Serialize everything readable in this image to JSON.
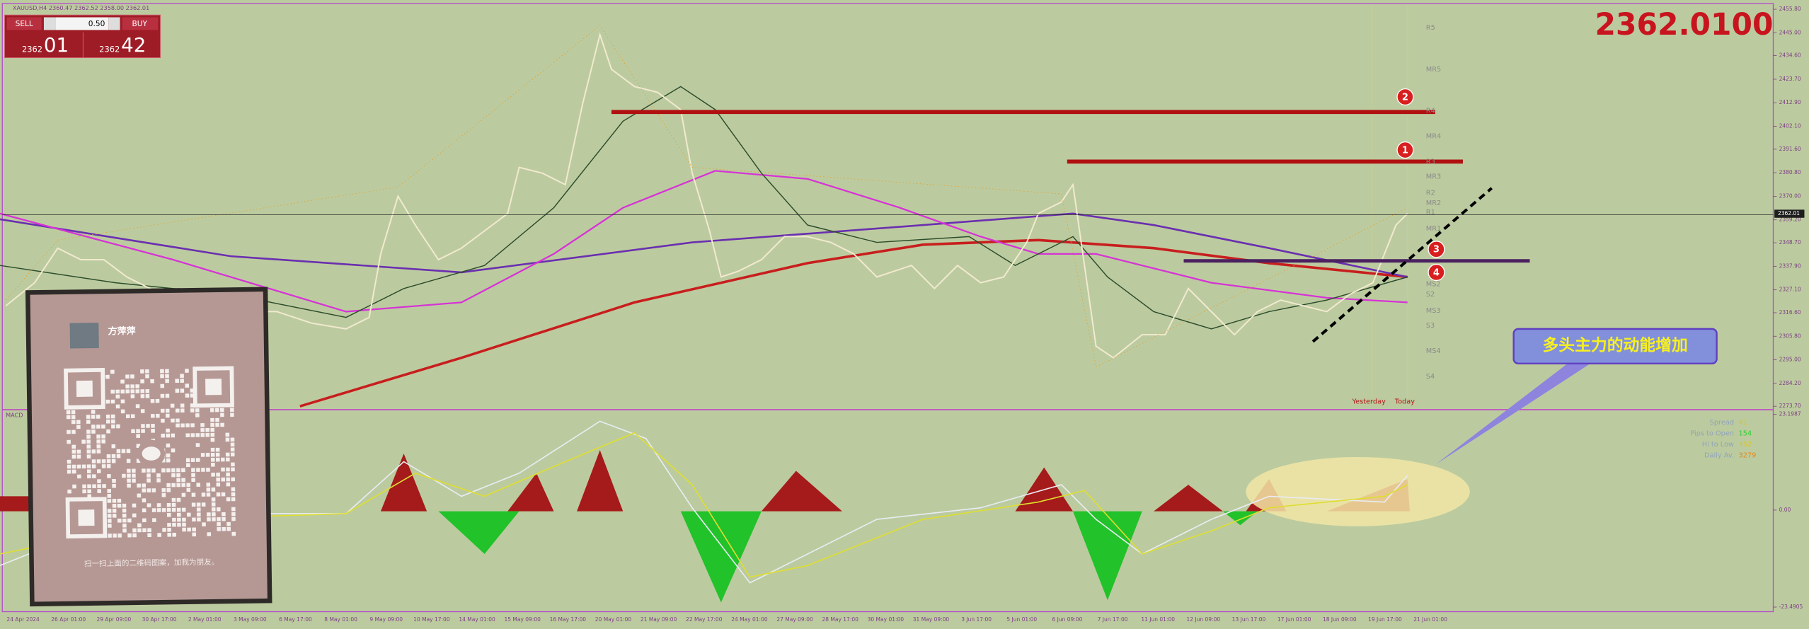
{
  "header": {
    "symbol_line": "XAUUSD,H4  2360.47 2362.52 2358.00 2362.01",
    "big_price": "2362.0100",
    "macd_label": "MACD"
  },
  "trade_panel": {
    "sell": "SELL",
    "buy": "BUY",
    "lot": "0.50",
    "bid_prefix": "2362",
    "bid_pips": "01",
    "ask_prefix": "2362",
    "ask_pips": "42"
  },
  "price_axis": {
    "ticks": [
      {
        "value": 2455.8,
        "label": "2455.80"
      },
      {
        "value": 2445,
        "label": "2445.00"
      },
      {
        "value": 2434.6,
        "label": "2434.60"
      },
      {
        "value": 2423.7,
        "label": "2423.70"
      },
      {
        "value": 2412.9,
        "label": "2412.90"
      },
      {
        "value": 2402.1,
        "label": "2402.10"
      },
      {
        "value": 2391.6,
        "label": "2391.60"
      },
      {
        "value": 2380.8,
        "label": "2380.80"
      },
      {
        "value": 2370,
        "label": "2370.00"
      },
      {
        "value": 2359.2,
        "label": "2359.20"
      },
      {
        "value": 2348.7,
        "label": "2348.70"
      },
      {
        "value": 2337.9,
        "label": "2337.90"
      },
      {
        "value": 2327.1,
        "label": "2327.10"
      },
      {
        "value": 2316.6,
        "label": "2316.60"
      },
      {
        "value": 2305.8,
        "label": "2305.80"
      },
      {
        "value": 2295,
        "label": "2295.00"
      },
      {
        "value": 2284.2,
        "label": "2284.20"
      },
      {
        "value": 2273.7,
        "label": "2273.70"
      }
    ],
    "current": {
      "value": 2362.01,
      "label": "2362.01"
    }
  },
  "macd_axis": {
    "ticks": [
      {
        "value": 23.1987,
        "label": "23.1987"
      },
      {
        "value": 0,
        "label": "0.00"
      },
      {
        "value": -23.4905,
        "label": "-23.4905"
      }
    ]
  },
  "dates": [
    "24 Apr 2024",
    "26 Apr 01:00",
    "29 Apr 09:00",
    "30 Apr 17:00",
    "2 May 01:00",
    "3 May 09:00",
    "6 May 17:00",
    "8 May 01:00",
    "9 May 09:00",
    "10 May 17:00",
    "14 May 01:00",
    "15 May 09:00",
    "16 May 17:00",
    "20 May 01:00",
    "21 May 09:00",
    "22 May 17:00",
    "24 May 01:00",
    "27 May 09:00",
    "28 May 17:00",
    "30 May 01:00",
    "31 May 09:00",
    "3 Jun 17:00",
    "5 Jun 01:00",
    "6 Jun 09:00",
    "7 Jun 17:00",
    "11 Jun 01:00",
    "12 Jun 09:00",
    "13 Jun 17:00",
    "17 Jun 01:00",
    "18 Jun 09:00",
    "19 Jun 17:00",
    "21 Jun 01:00"
  ],
  "pivots": [
    "R5",
    "MR5",
    "R4",
    "MR4",
    "R3",
    "MR3",
    "R2",
    "MR2",
    "R1",
    "MR1",
    "MS2",
    "S2",
    "MS3",
    "S3",
    "MS4",
    "S4"
  ],
  "markers": [
    "1",
    "2",
    "3",
    "4"
  ],
  "session_labels": {
    "yesterday": "Yesterday",
    "today": "Today"
  },
  "info_panel": [
    {
      "label": "Spread",
      "value": 41
    },
    {
      "label": "Pips to Open",
      "value": 154
    },
    {
      "label": "Hi to Low",
      "value": 452
    },
    {
      "label": "Daily Av.",
      "value": 3279
    }
  ],
  "annotation": "多头主力的动能增加",
  "qr_card": {
    "name": "方萍萍",
    "caption": "扫一扫上面的二维码图案，加我为朋友。"
  }
}
